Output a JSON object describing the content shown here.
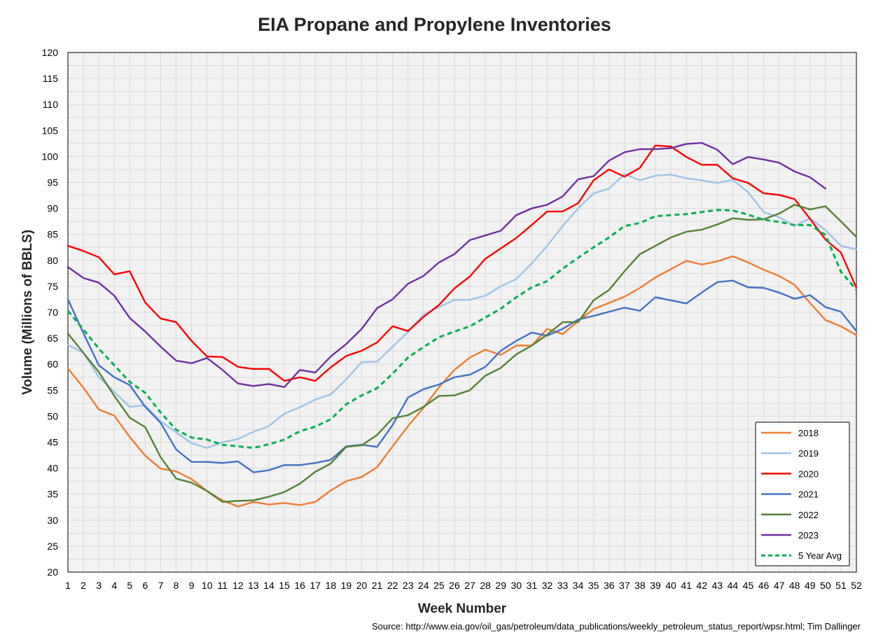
{
  "chart_data": {
    "type": "line",
    "title": "EIA Propane and Propylene Inventories",
    "xlabel": "Week Number",
    "ylabel": "Volume (Millions of BBLS)",
    "source": "Source: http://www.eia.gov/oil_gas/petroleum/data_publications/weekly_petroleum_status_report/wpsr.html; Tim Dallinger",
    "xlim": [
      1,
      52
    ],
    "ylim": [
      20,
      120
    ],
    "y_major_step": 5,
    "y_minor_step": 2.5,
    "grid": true,
    "legend_position": "bottom-right",
    "x": [
      1,
      2,
      3,
      4,
      5,
      6,
      7,
      8,
      9,
      10,
      11,
      12,
      13,
      14,
      15,
      16,
      17,
      18,
      19,
      20,
      21,
      22,
      23,
      24,
      25,
      26,
      27,
      28,
      29,
      30,
      31,
      32,
      33,
      34,
      35,
      36,
      37,
      38,
      39,
      40,
      41,
      42,
      43,
      44,
      45,
      46,
      47,
      48,
      49,
      50,
      51,
      52
    ],
    "series": [
      {
        "name": "2018",
        "color": "#ed7d31",
        "dash": false,
        "values": [
          59.2,
          55.5,
          51.3,
          50.1,
          46.0,
          42.4,
          39.9,
          39.4,
          37.9,
          35.6,
          33.8,
          32.6,
          33.5,
          33.0,
          33.3,
          32.9,
          33.5,
          35.7,
          37.5,
          38.3,
          40.2,
          44.2,
          48.1,
          51.6,
          55.6,
          58.9,
          61.3,
          62.8,
          61.8,
          63.6,
          63.6,
          66.8,
          65.8,
          68.3,
          70.6,
          71.8,
          73.0,
          74.7,
          76.7,
          78.3,
          79.9,
          79.2,
          79.8,
          80.8,
          79.6,
          78.2,
          77.0,
          75.3,
          71.8,
          68.5,
          67.3,
          65.6
        ]
      },
      {
        "name": "2019",
        "color": "#9dc3e6",
        "dash": false,
        "values": [
          63.7,
          62.2,
          57.5,
          54.7,
          51.8,
          52.1,
          49.0,
          46.9,
          44.8,
          43.9,
          45.0,
          45.6,
          47.0,
          48.1,
          50.5,
          51.7,
          53.2,
          54.2,
          57.1,
          60.4,
          60.5,
          63.4,
          66.2,
          69.5,
          71.0,
          72.4,
          72.4,
          73.2,
          75.0,
          76.4,
          79.4,
          82.8,
          86.6,
          90.0,
          92.9,
          93.8,
          96.6,
          95.4,
          96.3,
          96.5,
          95.8,
          95.4,
          94.9,
          95.5,
          93.1,
          89.3,
          88.3,
          86.6,
          88.1,
          85.8,
          82.8,
          82.1
        ]
      },
      {
        "name": "2020",
        "color": "#ff0000",
        "dash": false,
        "values": [
          82.8,
          81.8,
          80.6,
          77.3,
          77.9,
          71.9,
          68.8,
          68.1,
          64.5,
          61.5,
          61.4,
          59.5,
          59.1,
          59.1,
          56.8,
          57.5,
          56.8,
          59.4,
          61.6,
          62.6,
          64.2,
          67.3,
          66.4,
          69.1,
          71.4,
          74.6,
          76.9,
          80.3,
          82.3,
          84.3,
          86.8,
          89.4,
          89.4,
          91.0,
          95.4,
          97.5,
          96.1,
          97.8,
          102.1,
          101.9,
          99.9,
          98.4,
          98.4,
          95.8,
          94.9,
          92.9,
          92.6,
          91.8,
          88.0,
          84.0,
          81.5,
          74.7
        ]
      },
      {
        "name": "2021",
        "color": "#4472c4",
        "dash": false,
        "values": [
          72.5,
          66.0,
          59.8,
          57.5,
          56.0,
          51.8,
          48.7,
          43.6,
          41.2,
          41.2,
          41.0,
          41.3,
          39.2,
          39.6,
          40.6,
          40.6,
          41.0,
          41.6,
          44.2,
          44.5,
          44.1,
          48.3,
          53.6,
          55.2,
          56.1,
          57.5,
          58.0,
          59.5,
          62.6,
          64.5,
          66.1,
          65.5,
          66.8,
          68.6,
          69.3,
          70.1,
          70.9,
          70.3,
          72.9,
          72.3,
          71.7,
          73.8,
          75.8,
          76.1,
          74.8,
          74.7,
          73.8,
          72.6,
          73.3,
          71.0,
          70.1,
          66.4
        ]
      },
      {
        "name": "2022",
        "color": "#548235",
        "dash": false,
        "values": [
          65.9,
          62.2,
          58.5,
          53.9,
          49.7,
          47.9,
          42.1,
          38.0,
          37.2,
          35.6,
          33.5,
          33.7,
          33.8,
          34.5,
          35.4,
          37.0,
          39.3,
          40.9,
          44.1,
          44.4,
          46.4,
          49.6,
          50.2,
          51.8,
          53.9,
          54.0,
          55.0,
          57.8,
          59.3,
          61.9,
          63.6,
          65.7,
          68.1,
          68.1,
          72.3,
          74.3,
          77.9,
          81.2,
          82.8,
          84.4,
          85.5,
          85.9,
          86.9,
          88.1,
          87.8,
          87.9,
          89.0,
          90.7,
          89.8,
          90.4,
          87.5,
          84.5
        ]
      },
      {
        "name": "2023",
        "color": "#7030a0",
        "dash": false,
        "values": [
          78.7,
          76.6,
          75.7,
          73.2,
          68.9,
          66.3,
          63.4,
          60.7,
          60.2,
          61.2,
          58.9,
          56.3,
          55.8,
          56.2,
          55.6,
          58.9,
          58.4,
          61.5,
          63.9,
          66.8,
          70.8,
          72.5,
          75.5,
          77.0,
          79.6,
          81.2,
          83.9,
          84.8,
          85.7,
          88.7,
          90.0,
          90.7,
          92.3,
          95.6,
          96.2,
          99.2,
          100.8,
          101.4,
          101.4,
          101.6,
          102.4,
          102.6,
          101.3,
          98.5,
          99.9,
          99.4,
          98.8,
          97.1,
          96.0,
          93.8,
          null,
          null
        ]
      },
      {
        "name": "5 Year Avg",
        "color": "#00b050",
        "dash": true,
        "values": [
          70.3,
          66.7,
          63.0,
          59.8,
          56.6,
          54.5,
          50.7,
          47.4,
          45.9,
          45.5,
          44.5,
          44.2,
          43.9,
          44.6,
          45.5,
          47.1,
          48.0,
          49.4,
          52.3,
          54.0,
          55.4,
          58.2,
          61.3,
          63.3,
          65.2,
          66.3,
          67.3,
          69.0,
          70.7,
          72.9,
          74.8,
          76.0,
          78.4,
          80.5,
          82.5,
          84.4,
          86.6,
          87.2,
          88.5,
          88.7,
          88.9,
          89.3,
          89.7,
          89.6,
          88.8,
          87.8,
          87.4,
          86.8,
          86.8,
          84.9,
          77.8,
          74.3
        ]
      }
    ]
  }
}
